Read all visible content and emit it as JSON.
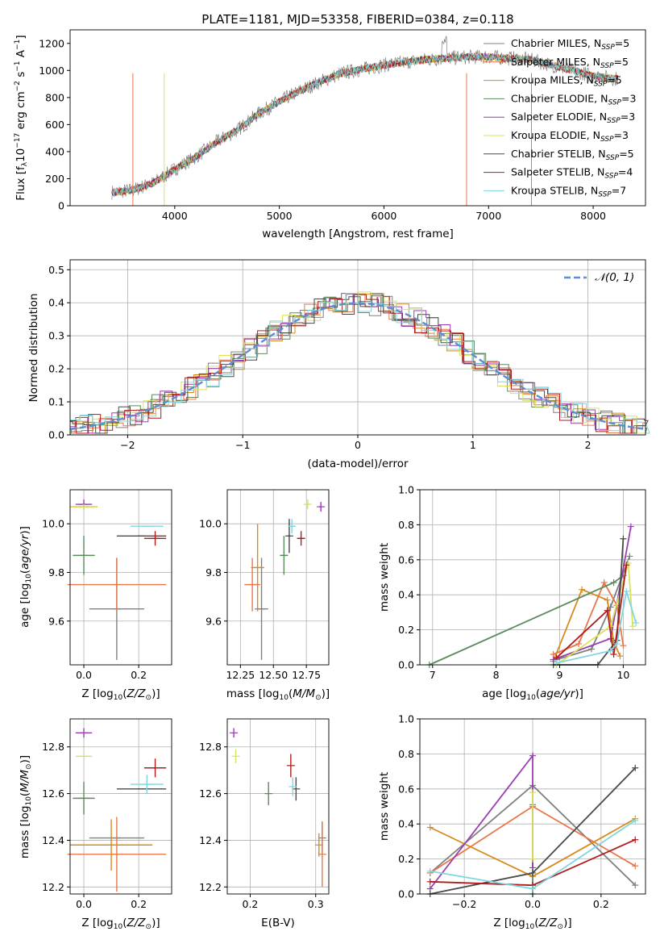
{
  "title": "PLATE=1181, MJD=53358, FIBERID=0384, z=0.118",
  "series_styles": [
    {
      "name": "Chabrier MILES",
      "nssp": "=5",
      "color": "#808080"
    },
    {
      "name": "Salpeter MILES",
      "nssp": "=5",
      "color": "#e8774a"
    },
    {
      "name": "Kroupa MILES",
      "nssp": "=5",
      "color": "#d98a1f"
    },
    {
      "name": "Chabrier ELODIE",
      "nssp": "=3",
      "color": "#5b8a5b"
    },
    {
      "name": "Salpeter ELODIE",
      "nssp": "=3",
      "color": "#9a3fb0"
    },
    {
      "name": "Kroupa ELODIE",
      "nssp": "=3",
      "color": "#d8e35a"
    },
    {
      "name": "Chabrier STELIB",
      "nssp": "=5",
      "color": "#4a4a4a"
    },
    {
      "name": "Salpeter STELIB",
      "nssp": "=4",
      "color": "#b01c1c"
    },
    {
      "name": "Kroupa STELIB",
      "nssp": "=7",
      "color": "#7fd6e0"
    }
  ],
  "chart_data": [
    {
      "id": "spectrum",
      "type": "line",
      "title": "PLATE=1181, MJD=53358, FIBERID=0384, z=0.118",
      "xlabel": "wavelength [Angstrom, rest frame]",
      "ylabel": "Flux [f_λ10^-17 erg cm^-2 s^-1 A^-1]",
      "xlim": [
        3000,
        8500
      ],
      "ylim": [
        0,
        1300
      ],
      "xticks": [
        4000,
        5000,
        6000,
        7000,
        8000
      ],
      "yticks": [
        0,
        200,
        400,
        600,
        800,
        1000,
        1200
      ],
      "x": [
        3400,
        3600,
        3800,
        4000,
        4200,
        4400,
        4600,
        4800,
        5000,
        5200,
        5400,
        5600,
        5800,
        6000,
        6200,
        6400,
        6600,
        6800,
        7000,
        7200,
        7400,
        7600,
        7800,
        8000,
        8200
      ],
      "y": [
        100,
        115,
        170,
        270,
        360,
        470,
        560,
        680,
        770,
        850,
        920,
        980,
        1010,
        1040,
        1060,
        1080,
        1090,
        1100,
        1100,
        1090,
        1080,
        1040,
        1000,
        960,
        940
      ],
      "grid": false,
      "legend_position": "top-right"
    },
    {
      "id": "residuals",
      "type": "histogram",
      "xlabel": "(data-model)/error",
      "ylabel": "Normed distribution",
      "xlim": [
        -2.5,
        2.5
      ],
      "ylim": [
        0,
        0.53
      ],
      "xticks": [
        -2,
        -1,
        0,
        1,
        2
      ],
      "yticks": [
        0,
        0.1,
        0.2,
        0.3,
        0.4,
        0.5
      ],
      "reference_curve": "𝒩(0, 1)",
      "reference_mu": 0,
      "reference_sigma": 1,
      "grid": true,
      "legend_position": "top-right"
    },
    {
      "id": "age_vs_Z",
      "type": "scatter",
      "xlabel": "Z [log10(Z/Z⊙)]",
      "ylabel": "age [log10(age/yr)]",
      "xlim": [
        -0.05,
        0.32
      ],
      "ylim": [
        9.42,
        10.14
      ],
      "xticks": [
        0.0,
        0.2
      ],
      "yticks": [
        9.6,
        9.8,
        10.0
      ],
      "points": [
        {
          "x": 0.12,
          "y": 9.65,
          "xerr": 0.1,
          "yerr": 0.21
        },
        {
          "x": 0.12,
          "y": 9.75,
          "xerr": 0.18,
          "yerr": 0.11
        },
        {
          "x": 0.0,
          "y": 10.07,
          "xerr": 0.05,
          "yerr": 0.0
        },
        {
          "x": 0.0,
          "y": 9.87,
          "xerr": 0.04,
          "yerr": 0.08
        },
        {
          "x": 0.0,
          "y": 10.08,
          "xerr": 0.03,
          "yerr": 0.02
        },
        {
          "x": 0.0,
          "y": 10.07,
          "xerr": 0.05,
          "yerr": 0.01
        },
        {
          "x": 0.21,
          "y": 9.95,
          "xerr": 0.09,
          "yerr": 0.0
        },
        {
          "x": 0.26,
          "y": 9.94,
          "xerr": 0.04,
          "yerr": 0.03
        },
        {
          "x": 0.23,
          "y": 9.99,
          "xerr": 0.06,
          "yerr": 0.0
        }
      ],
      "grid": true
    },
    {
      "id": "age_vs_mass",
      "type": "scatter",
      "xlabel": "mass [log10(M/M⊙)]",
      "ylabel": "",
      "xlim": [
        12.15,
        12.92
      ],
      "ylim": [
        9.42,
        10.14
      ],
      "xticks": [
        12.25,
        12.5,
        12.75
      ],
      "yticks": [
        9.6,
        9.8,
        10.0
      ],
      "points": [
        {
          "x": 12.41,
          "y": 9.65,
          "xerr": 0.05,
          "yerr": 0.21
        },
        {
          "x": 12.34,
          "y": 9.75,
          "xerr": 0.06,
          "yerr": 0.11
        },
        {
          "x": 12.38,
          "y": 9.82,
          "xerr": 0.05,
          "yerr": 0.18
        },
        {
          "x": 12.58,
          "y": 9.87,
          "xerr": 0.03,
          "yerr": 0.08
        },
        {
          "x": 12.86,
          "y": 10.07,
          "xerr": 0.01,
          "yerr": 0.02
        },
        {
          "x": 12.76,
          "y": 10.08,
          "xerr": 0.01,
          "yerr": 0.02
        },
        {
          "x": 12.62,
          "y": 9.95,
          "xerr": 0.01,
          "yerr": 0.07
        },
        {
          "x": 12.71,
          "y": 9.94,
          "xerr": 0.03,
          "yerr": 0.03
        },
        {
          "x": 12.64,
          "y": 9.99,
          "xerr": 0.02,
          "yerr": 0.03
        }
      ],
      "grid": true
    },
    {
      "id": "weight_vs_age",
      "type": "line",
      "xlabel": "age [log10(age/yr)]",
      "ylabel": "mass weight",
      "xlim": [
        6.8,
        10.35
      ],
      "ylim": [
        0,
        1.0
      ],
      "xticks": [
        7,
        8,
        9,
        10
      ],
      "yticks": [
        0.0,
        0.2,
        0.4,
        0.6,
        0.8,
        1.0
      ],
      "series": [
        {
          "name": "Chabrier MILES",
          "x": [
            8.95,
            9.5,
            9.8,
            10.1
          ],
          "y": [
            0.03,
            0.09,
            0.33,
            0.62
          ]
        },
        {
          "name": "Salpeter MILES",
          "x": [
            8.9,
            9.3,
            9.7,
            9.9,
            10.0
          ],
          "y": [
            0.06,
            0.12,
            0.47,
            0.34,
            0.11
          ]
        },
        {
          "name": "Kroupa MILES",
          "x": [
            8.9,
            9.35,
            9.75,
            9.85,
            9.95
          ],
          "y": [
            0.02,
            0.43,
            0.37,
            0.13,
            0.05
          ]
        },
        {
          "name": "Chabrier ELODIE",
          "x": [
            6.95,
            9.85,
            10.0
          ],
          "y": [
            0.0,
            0.47,
            0.51
          ]
        },
        {
          "name": "Salpeter ELODIE",
          "x": [
            8.9,
            9.8,
            10.12
          ],
          "y": [
            0.03,
            0.15,
            0.79
          ]
        },
        {
          "name": "Kroupa ELODIE",
          "x": [
            8.95,
            9.8,
            10.08,
            10.15
          ],
          "y": [
            0.0,
            0.22,
            0.58,
            0.22
          ]
        },
        {
          "name": "Chabrier STELIB",
          "x": [
            8.9,
            9.6,
            9.9,
            10.0
          ],
          "y": [
            0.0,
            0.0,
            0.14,
            0.72
          ]
        },
        {
          "name": "Salpeter STELIB",
          "x": [
            8.95,
            9.75,
            9.85,
            10.05
          ],
          "y": [
            0.04,
            0.31,
            0.06,
            0.57
          ]
        },
        {
          "name": "Kroupa STELIB",
          "x": [
            8.95,
            9.8,
            9.9,
            10.05,
            10.2
          ],
          "y": [
            0.01,
            0.08,
            0.12,
            0.42,
            0.24
          ]
        }
      ],
      "grid": true
    },
    {
      "id": "mass_vs_Z",
      "type": "scatter",
      "xlabel": "Z [log10(Z/Z⊙)]",
      "ylabel": "mass [log10(M/M⊙)]",
      "xlim": [
        -0.05,
        0.32
      ],
      "ylim": [
        12.17,
        12.92
      ],
      "xticks": [
        0.0,
        0.2
      ],
      "yticks": [
        12.2,
        12.4,
        12.6,
        12.8
      ],
      "points": [
        {
          "x": 0.12,
          "y": 12.41,
          "xerr": 0.1,
          "yerr": 0.0
        },
        {
          "x": 0.12,
          "y": 12.34,
          "xerr": 0.18,
          "yerr": 0.16
        },
        {
          "x": 0.1,
          "y": 12.38,
          "xerr": 0.15,
          "yerr": 0.11
        },
        {
          "x": 0.0,
          "y": 12.58,
          "xerr": 0.04,
          "yerr": 0.07
        },
        {
          "x": 0.0,
          "y": 12.86,
          "xerr": 0.03,
          "yerr": 0.02
        },
        {
          "x": 0.0,
          "y": 12.76,
          "xerr": 0.03,
          "yerr": 0.0
        },
        {
          "x": 0.21,
          "y": 12.62,
          "xerr": 0.09,
          "yerr": 0.0
        },
        {
          "x": 0.26,
          "y": 12.71,
          "xerr": 0.04,
          "yerr": 0.04
        },
        {
          "x": 0.23,
          "y": 12.64,
          "xerr": 0.06,
          "yerr": 0.04
        }
      ],
      "grid": true
    },
    {
      "id": "mass_vs_ebv",
      "type": "scatter",
      "xlabel": "E(B-V)",
      "ylabel": "",
      "xlim": [
        0.165,
        0.32
      ],
      "ylim": [
        12.17,
        12.92
      ],
      "xticks": [
        0.2,
        0.3
      ],
      "yticks": [
        12.2,
        12.4,
        12.6,
        12.8
      ],
      "points": [
        {
          "x": 0.31,
          "y": 12.41,
          "xerr": 0.0,
          "yerr": 0.07
        },
        {
          "x": 0.31,
          "y": 12.34,
          "xerr": 0.0,
          "yerr": 0.14
        },
        {
          "x": 0.305,
          "y": 12.38,
          "xerr": 0.0,
          "yerr": 0.05
        },
        {
          "x": 0.228,
          "y": 12.6,
          "xerr": 0.0,
          "yerr": 0.05
        },
        {
          "x": 0.175,
          "y": 12.86,
          "xerr": 0.0,
          "yerr": 0.02
        },
        {
          "x": 0.178,
          "y": 12.76,
          "xerr": 0.0,
          "yerr": 0.03
        },
        {
          "x": 0.27,
          "y": 12.62,
          "xerr": 0.0,
          "yerr": 0.05
        },
        {
          "x": 0.262,
          "y": 12.72,
          "xerr": 0.0,
          "yerr": 0.05
        },
        {
          "x": 0.265,
          "y": 12.63,
          "xerr": 0.0,
          "yerr": 0.04
        }
      ],
      "grid": true
    },
    {
      "id": "weight_vs_Z",
      "type": "line",
      "xlabel": "Z [log10(Z/Z⊙)]",
      "ylabel": "mass weight",
      "xlim": [
        -0.33,
        0.33
      ],
      "ylim": [
        0,
        1.0
      ],
      "xticks": [
        -0.2,
        0.0,
        0.2
      ],
      "yticks": [
        0.0,
        0.2,
        0.4,
        0.6,
        0.8,
        1.0
      ],
      "series": [
        {
          "name": "Chabrier MILES",
          "x": [
            -0.3,
            0.0,
            0.3
          ],
          "y": [
            0.12,
            0.62,
            0.05
          ]
        },
        {
          "name": "Salpeter MILES",
          "x": [
            -0.3,
            0.0,
            0.3
          ],
          "y": [
            0.12,
            0.5,
            0.16
          ]
        },
        {
          "name": "Kroupa MILES",
          "x": [
            -0.3,
            0.0,
            0.3
          ],
          "y": [
            0.38,
            0.1,
            0.43
          ]
        },
        {
          "name": "Chabrier ELODIE",
          "x": [
            0.0,
            0.0
          ],
          "y": [
            0.0,
            0.51
          ]
        },
        {
          "name": "Salpeter ELODIE",
          "x": [
            -0.3,
            0.0,
            0.0
          ],
          "y": [
            0.03,
            0.79,
            0.15
          ]
        },
        {
          "name": "Kroupa ELODIE",
          "x": [
            0.0,
            0.0
          ],
          "y": [
            0.2,
            0.58
          ]
        },
        {
          "name": "Chabrier STELIB",
          "x": [
            -0.3,
            0.0,
            0.3
          ],
          "y": [
            0.0,
            0.12,
            0.72
          ]
        },
        {
          "name": "Salpeter STELIB",
          "x": [
            -0.3,
            0.0,
            0.3
          ],
          "y": [
            0.07,
            0.05,
            0.31
          ]
        },
        {
          "name": "Kroupa STELIB",
          "x": [
            -0.3,
            0.0,
            0.3
          ],
          "y": [
            0.13,
            0.03,
            0.42
          ]
        }
      ],
      "grid": true
    }
  ]
}
